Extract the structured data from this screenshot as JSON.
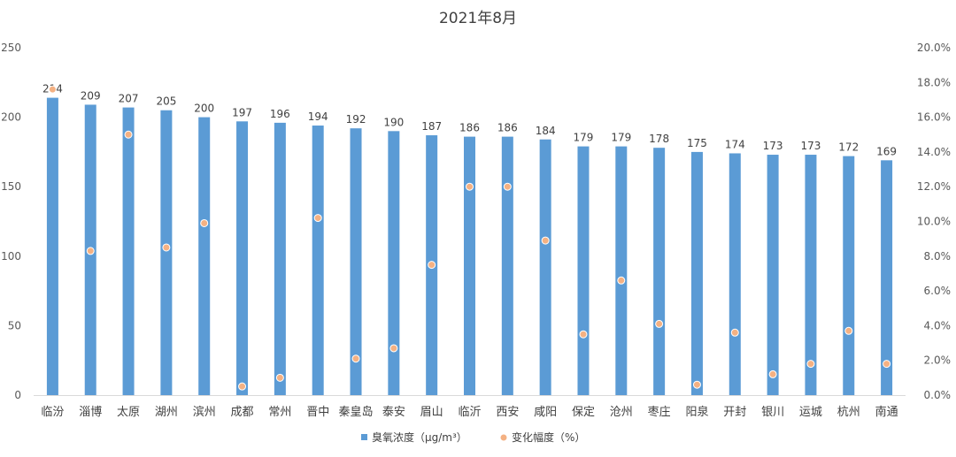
{
  "chart_data": {
    "type": "bar",
    "title": "2021年8月",
    "categories": [
      "临汾",
      "淄博",
      "太原",
      "湖州",
      "滨州",
      "成都",
      "常州",
      "晋中",
      "秦皇岛",
      "泰安",
      "眉山",
      "临沂",
      "西安",
      "咸阳",
      "保定",
      "沧州",
      "枣庄",
      "阳泉",
      "开封",
      "银川",
      "运城",
      "杭州",
      "南通"
    ],
    "series": [
      {
        "name": "臭氧浓度（μg/m³）",
        "type": "bar",
        "axis": "left",
        "color": "#5b9bd5",
        "values": [
          214,
          209,
          207,
          205,
          200,
          197,
          196,
          194,
          192,
          190,
          187,
          186,
          186,
          184,
          179,
          179,
          178,
          175,
          174,
          173,
          173,
          172,
          169
        ]
      },
      {
        "name": "变化幅度（%）",
        "type": "scatter",
        "axis": "right",
        "color": "#f4b183",
        "values": [
          17.6,
          8.3,
          15.0,
          8.5,
          9.9,
          0.5,
          1.0,
          10.2,
          2.1,
          2.7,
          7.5,
          12.0,
          12.0,
          8.9,
          3.5,
          6.6,
          4.1,
          0.6,
          3.6,
          1.2,
          1.8,
          3.7,
          1.8
        ]
      }
    ],
    "y_left": {
      "min": 0,
      "max": 250,
      "ticks": [
        "0",
        "50",
        "100",
        "150",
        "200",
        "250"
      ]
    },
    "y_right": {
      "min": 0,
      "max": 20,
      "ticks": [
        "0.0%",
        "2.0%",
        "4.0%",
        "6.0%",
        "8.0%",
        "10.0%",
        "12.0%",
        "14.0%",
        "16.0%",
        "18.0%",
        "20.0%"
      ]
    },
    "grid": false,
    "legend_position": "bottom"
  }
}
